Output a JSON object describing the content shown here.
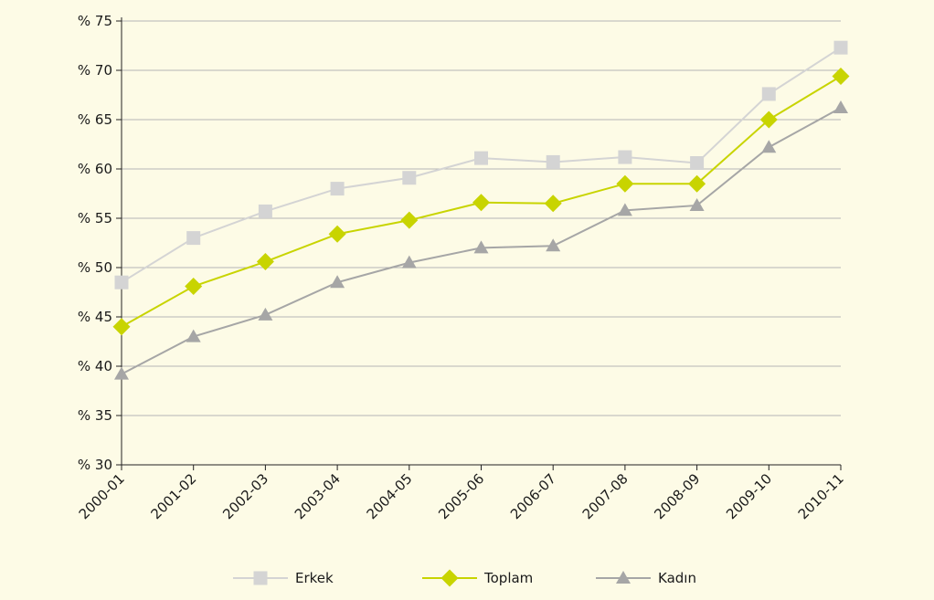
{
  "chart_data": {
    "type": "line",
    "categories": [
      "2000-01",
      "2001-02",
      "2002-03",
      "2003-04",
      "2004-05",
      "2005-06",
      "2006-07",
      "2007-08",
      "2008-09",
      "2009-10",
      "2010-11"
    ],
    "series": [
      {
        "name": "Erkek",
        "color": "#d4d4d4",
        "marker": "square",
        "values": [
          48.5,
          53.0,
          55.7,
          58.0,
          59.1,
          61.1,
          60.7,
          61.2,
          60.6,
          67.6,
          72.3
        ]
      },
      {
        "name": "Toplam",
        "color": "#c8d400",
        "marker": "diamond",
        "values": [
          44.0,
          48.1,
          50.6,
          53.4,
          54.8,
          56.6,
          56.5,
          58.5,
          58.5,
          65.0,
          69.4
        ]
      },
      {
        "name": "Kadın",
        "color": "#a6a6a6",
        "marker": "triangle",
        "values": [
          39.2,
          43.0,
          45.2,
          48.5,
          50.5,
          52.0,
          52.2,
          55.8,
          56.3,
          62.2,
          66.2
        ]
      }
    ],
    "yticks": [
      "% 30",
      "% 35",
      "% 40",
      "% 45",
      "% 50",
      "% 55",
      "% 60",
      "% 65",
      "% 70",
      "% 75"
    ],
    "ylim": [
      30,
      75
    ],
    "grid": true,
    "legend": "bottom-center",
    "title": "",
    "xlabel": "",
    "ylabel": ""
  }
}
